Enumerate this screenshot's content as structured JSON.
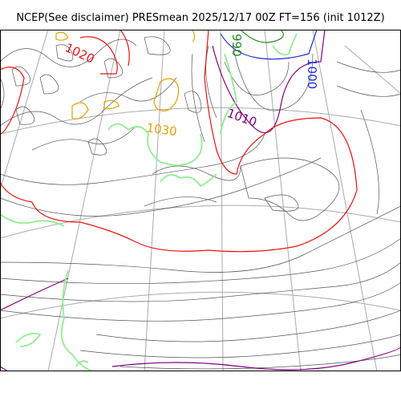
{
  "header": {
    "title": "NCEP(See disclaimer) PRESmean 2025/12/17 00Z FT=156 (init 1012Z)"
  },
  "map": {
    "colors": {
      "isobar": "#555555",
      "graticule": "#aaaaaa",
      "c1000": "#1f2fd8",
      "c1010": "#800080",
      "c1020": "#ee1111",
      "c1030": "#e8a000",
      "sea_ice": "#90ee90",
      "c990": "#228b22"
    },
    "contour_labels": [
      {
        "text": "1020",
        "color": "#ee1111"
      },
      {
        "text": "1030",
        "color": "#e8a000"
      },
      {
        "text": "1010",
        "color": "#800080"
      },
      {
        "text": "1000",
        "color": "#1f2fd8"
      },
      {
        "text": "990",
        "color": "#228b22"
      }
    ]
  }
}
